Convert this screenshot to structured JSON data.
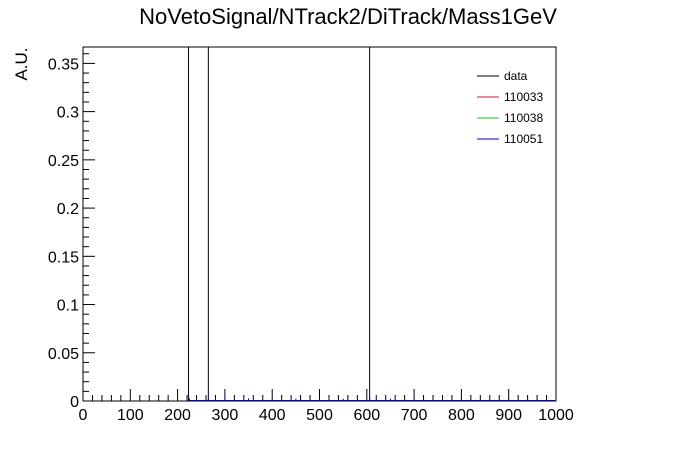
{
  "chart_data": {
    "type": "line",
    "title": "NoVetoSignal/NTrack2/DiTrack/Mass1GeV",
    "xlabel": "",
    "ylabel": "A.U.",
    "xlim": [
      0,
      1000
    ],
    "ylim": [
      0,
      0.367
    ],
    "x_ticks": [
      "0",
      "100",
      "200",
      "300",
      "400",
      "500",
      "600",
      "700",
      "800",
      "900",
      "1000"
    ],
    "y_ticks": [
      "0",
      "0.05",
      "0.1",
      "0.15",
      "0.2",
      "0.25",
      "0.3",
      "0.35"
    ],
    "grid": false,
    "legend_position": "top-right",
    "series": [
      {
        "name": "data",
        "color": "#000000",
        "style": "histogram",
        "spikes": [
          {
            "x": 223,
            "y": 0.367
          },
          {
            "x": 265,
            "y": 0.367
          },
          {
            "x": 606,
            "y": 0.367
          }
        ]
      },
      {
        "name": "110033",
        "color": "#c8102e",
        "style": "histogram",
        "points": []
      },
      {
        "name": "110038",
        "color": "#00c800",
        "style": "histogram",
        "points": []
      },
      {
        "name": "110051",
        "color": "#0000cc",
        "style": "histogram",
        "points": [
          {
            "x": 225,
            "y": 0.0012
          },
          {
            "x": 265,
            "y": 0.0015
          },
          {
            "x": 300,
            "y": 0.0014
          },
          {
            "x": 350,
            "y": 0.0012
          },
          {
            "x": 400,
            "y": 0.0011
          },
          {
            "x": 450,
            "y": 0.001
          },
          {
            "x": 500,
            "y": 0.001
          },
          {
            "x": 550,
            "y": 0.0009
          },
          {
            "x": 606,
            "y": 0.0016
          },
          {
            "x": 650,
            "y": 0.0009
          },
          {
            "x": 700,
            "y": 0.0008
          },
          {
            "x": 800,
            "y": 0.0007
          },
          {
            "x": 900,
            "y": 0.0006
          }
        ]
      }
    ]
  }
}
